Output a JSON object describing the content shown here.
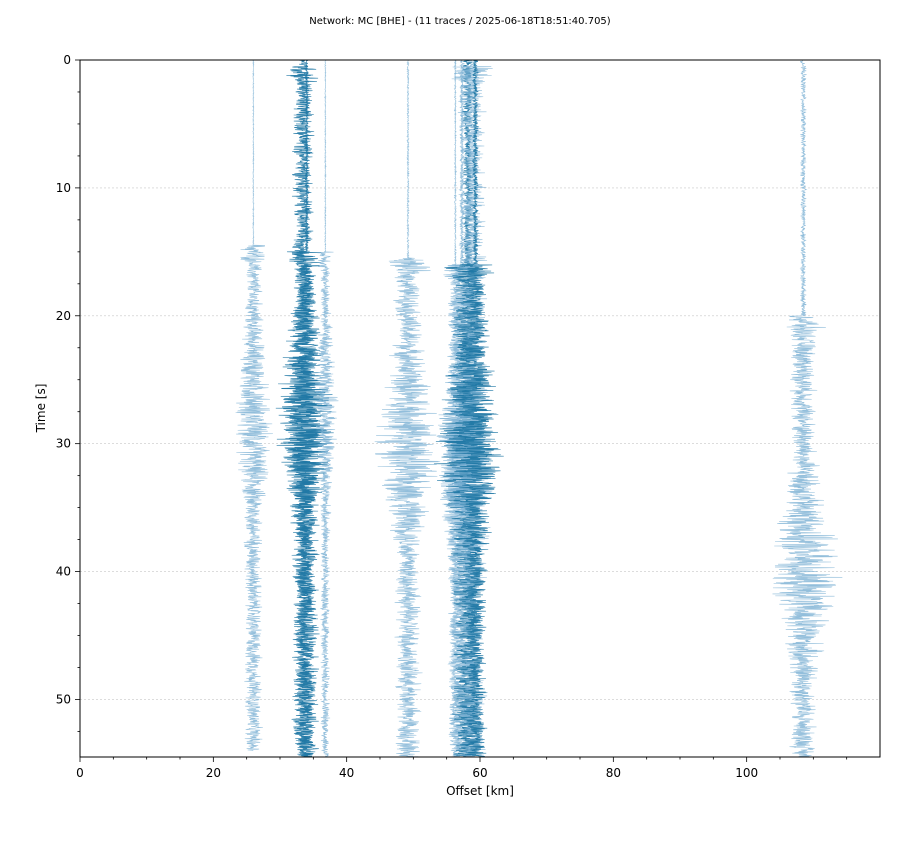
{
  "chart_data": {
    "type": "line",
    "title": "Network: MC [BHE] - (11 traces / 2025-06-18T18:51:40.705)",
    "xlabel": "Offset [km]",
    "ylabel": "Time [s]",
    "xlim": [
      0,
      120
    ],
    "ylim": [
      54.5,
      0
    ],
    "y_inverted": true,
    "grid": "horizontal dotted",
    "x_ticks": [
      0,
      20,
      40,
      60,
      80,
      100
    ],
    "y_ticks": [
      0,
      10,
      20,
      30,
      40,
      50
    ],
    "colors": {
      "light": "#7fb3d5",
      "dark": "#1f77a4",
      "frame": "#000000"
    },
    "traces": [
      {
        "offset_km": 26.0,
        "start_s": 0.0,
        "end_s": 54.0,
        "onset_s": 14.5,
        "pre_amp_km": 0.1,
        "amp_km": 1.5,
        "peak_s": 28.5,
        "peak_amp_km": 3.2,
        "shade": "light"
      },
      {
        "offset_km": 33.5,
        "start_s": 0.0,
        "end_s": 54.5,
        "onset_s": 0.5,
        "pre_amp_km": 0.9,
        "amp_km": 1.8,
        "peak_s": 28.0,
        "peak_amp_km": 5.0,
        "shade": "dark"
      },
      {
        "offset_km": 34.0,
        "start_s": 0.0,
        "end_s": 54.5,
        "onset_s": 15.0,
        "pre_amp_km": 0.3,
        "amp_km": 2.0,
        "peak_s": 29.0,
        "peak_amp_km": 4.5,
        "shade": "dark"
      },
      {
        "offset_km": 36.8,
        "start_s": 0.0,
        "end_s": 54.5,
        "onset_s": 15.0,
        "pre_amp_km": 0.1,
        "amp_km": 0.8,
        "peak_s": 27.0,
        "peak_amp_km": 2.0,
        "shade": "light"
      },
      {
        "offset_km": 49.2,
        "start_s": 0.0,
        "end_s": 54.5,
        "onset_s": 15.5,
        "pre_amp_km": 0.15,
        "amp_km": 2.2,
        "peak_s": 30.0,
        "peak_amp_km": 5.5,
        "shade": "light"
      },
      {
        "offset_km": 56.3,
        "start_s": 0.0,
        "end_s": 54.5,
        "onset_s": 16.0,
        "pre_amp_km": 0.15,
        "amp_km": 1.2,
        "peak_s": 31.0,
        "peak_amp_km": 3.0,
        "shade": "light"
      },
      {
        "offset_km": 57.3,
        "start_s": 0.0,
        "end_s": 54.5,
        "onset_s": 16.0,
        "pre_amp_km": 0.4,
        "amp_km": 2.0,
        "peak_s": 31.0,
        "peak_amp_km": 4.5,
        "shade": "light"
      },
      {
        "offset_km": 58.2,
        "start_s": 0.0,
        "end_s": 54.5,
        "onset_s": 16.0,
        "pre_amp_km": 0.9,
        "amp_km": 2.5,
        "peak_s": 30.0,
        "peak_amp_km": 5.5,
        "shade": "dark"
      },
      {
        "offset_km": 58.8,
        "start_s": 0.0,
        "end_s": 54.5,
        "onset_s": 0.5,
        "pre_amp_km": 0.9,
        "amp_km": 2.3,
        "peak_s": 32.0,
        "peak_amp_km": 4.5,
        "shade": "light"
      },
      {
        "offset_km": 59.3,
        "start_s": 0.0,
        "end_s": 54.5,
        "onset_s": 16.0,
        "pre_amp_km": 0.5,
        "amp_km": 2.0,
        "peak_s": 29.5,
        "peak_amp_km": 5.0,
        "shade": "dark"
      },
      {
        "offset_km": 108.5,
        "start_s": 0.0,
        "end_s": 54.5,
        "onset_s": 20.0,
        "pre_amp_km": 0.5,
        "amp_km": 2.2,
        "peak_s": 40.0,
        "peak_amp_km": 6.0,
        "shade": "light"
      }
    ]
  }
}
